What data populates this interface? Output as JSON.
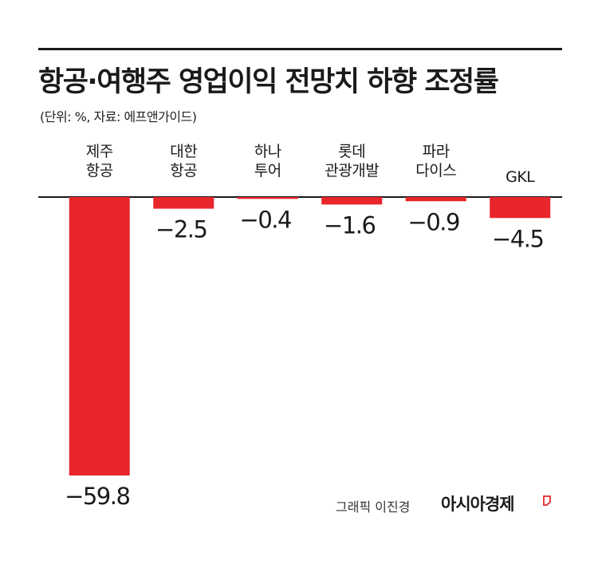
{
  "title": "항공·여행주 영업이익 전망치 하향 조정률",
  "subtitle": "(단위: %, 자료: 에프앤가이드)",
  "credit": "그래픽 이진경",
  "brand": "아시아경제",
  "colors": {
    "bar": "#e8262b",
    "axis": "#1a1a1a",
    "text": "#1a1a1a"
  },
  "chart_data": {
    "type": "bar",
    "categories": [
      [
        "제주",
        "항공"
      ],
      [
        "대한",
        "항공"
      ],
      [
        "하나",
        "투어"
      ],
      [
        "롯데",
        "관광개발"
      ],
      [
        "파라",
        "다이스"
      ],
      [
        "GKL"
      ]
    ],
    "values": [
      -59.8,
      -2.5,
      -0.4,
      -1.6,
      -0.9,
      -4.5
    ],
    "value_labels": [
      "−59.8",
      "−2.5",
      "−0.4",
      "−1.6",
      "−0.9",
      "−4.5"
    ],
    "unit": "%",
    "ylim": [
      -59.8,
      0
    ],
    "grid": false,
    "legend": "none"
  }
}
